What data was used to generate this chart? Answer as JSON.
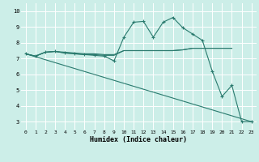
{
  "title": "",
  "xlabel": "Humidex (Indice chaleur)",
  "bg_color": "#cceee8",
  "grid_color": "#ffffff",
  "line_color": "#2a7a6e",
  "xlim": [
    -0.5,
    23.5
  ],
  "ylim": [
    2.5,
    10.5
  ],
  "xticks": [
    0,
    1,
    2,
    3,
    4,
    5,
    6,
    7,
    8,
    9,
    10,
    11,
    12,
    13,
    14,
    15,
    16,
    17,
    18,
    19,
    20,
    21,
    22,
    23
  ],
  "yticks": [
    3,
    4,
    5,
    6,
    7,
    8,
    9,
    10
  ],
  "line_flat1": {
    "x": [
      0,
      1,
      2,
      3,
      4,
      5,
      6,
      7,
      8,
      9,
      10,
      11,
      12,
      13,
      14,
      15,
      16,
      17,
      18,
      19,
      20,
      21
    ],
    "y": [
      7.3,
      7.15,
      7.4,
      7.45,
      7.4,
      7.35,
      7.3,
      7.3,
      7.25,
      7.25,
      7.5,
      7.5,
      7.5,
      7.5,
      7.5,
      7.5,
      7.55,
      7.65,
      7.65,
      7.65,
      7.65,
      7.65
    ]
  },
  "line_flat2": {
    "x": [
      0,
      1,
      2,
      3,
      4,
      5,
      6,
      7,
      8,
      9,
      10,
      11,
      12,
      13,
      14,
      15,
      16,
      17,
      18,
      19,
      20,
      21
    ],
    "y": [
      7.3,
      7.15,
      7.4,
      7.45,
      7.35,
      7.3,
      7.25,
      7.25,
      7.2,
      7.2,
      7.5,
      7.5,
      7.5,
      7.5,
      7.5,
      7.5,
      7.55,
      7.65,
      7.65,
      7.65,
      7.65,
      7.65
    ]
  },
  "line_wiggly": {
    "x": [
      0,
      1,
      2,
      3,
      4,
      5,
      6,
      7,
      8,
      9,
      10,
      11,
      12,
      13,
      14,
      15,
      16,
      17,
      18,
      19,
      20,
      21,
      22,
      23
    ],
    "y": [
      7.3,
      7.15,
      7.4,
      7.45,
      7.35,
      7.3,
      7.25,
      7.2,
      7.15,
      6.85,
      8.35,
      9.3,
      9.35,
      8.35,
      9.3,
      9.6,
      8.95,
      8.55,
      8.15,
      6.2,
      4.6,
      5.3,
      3.0,
      3.0
    ]
  },
  "line_diagonal": {
    "x": [
      0,
      23
    ],
    "y": [
      7.3,
      3.0
    ]
  }
}
